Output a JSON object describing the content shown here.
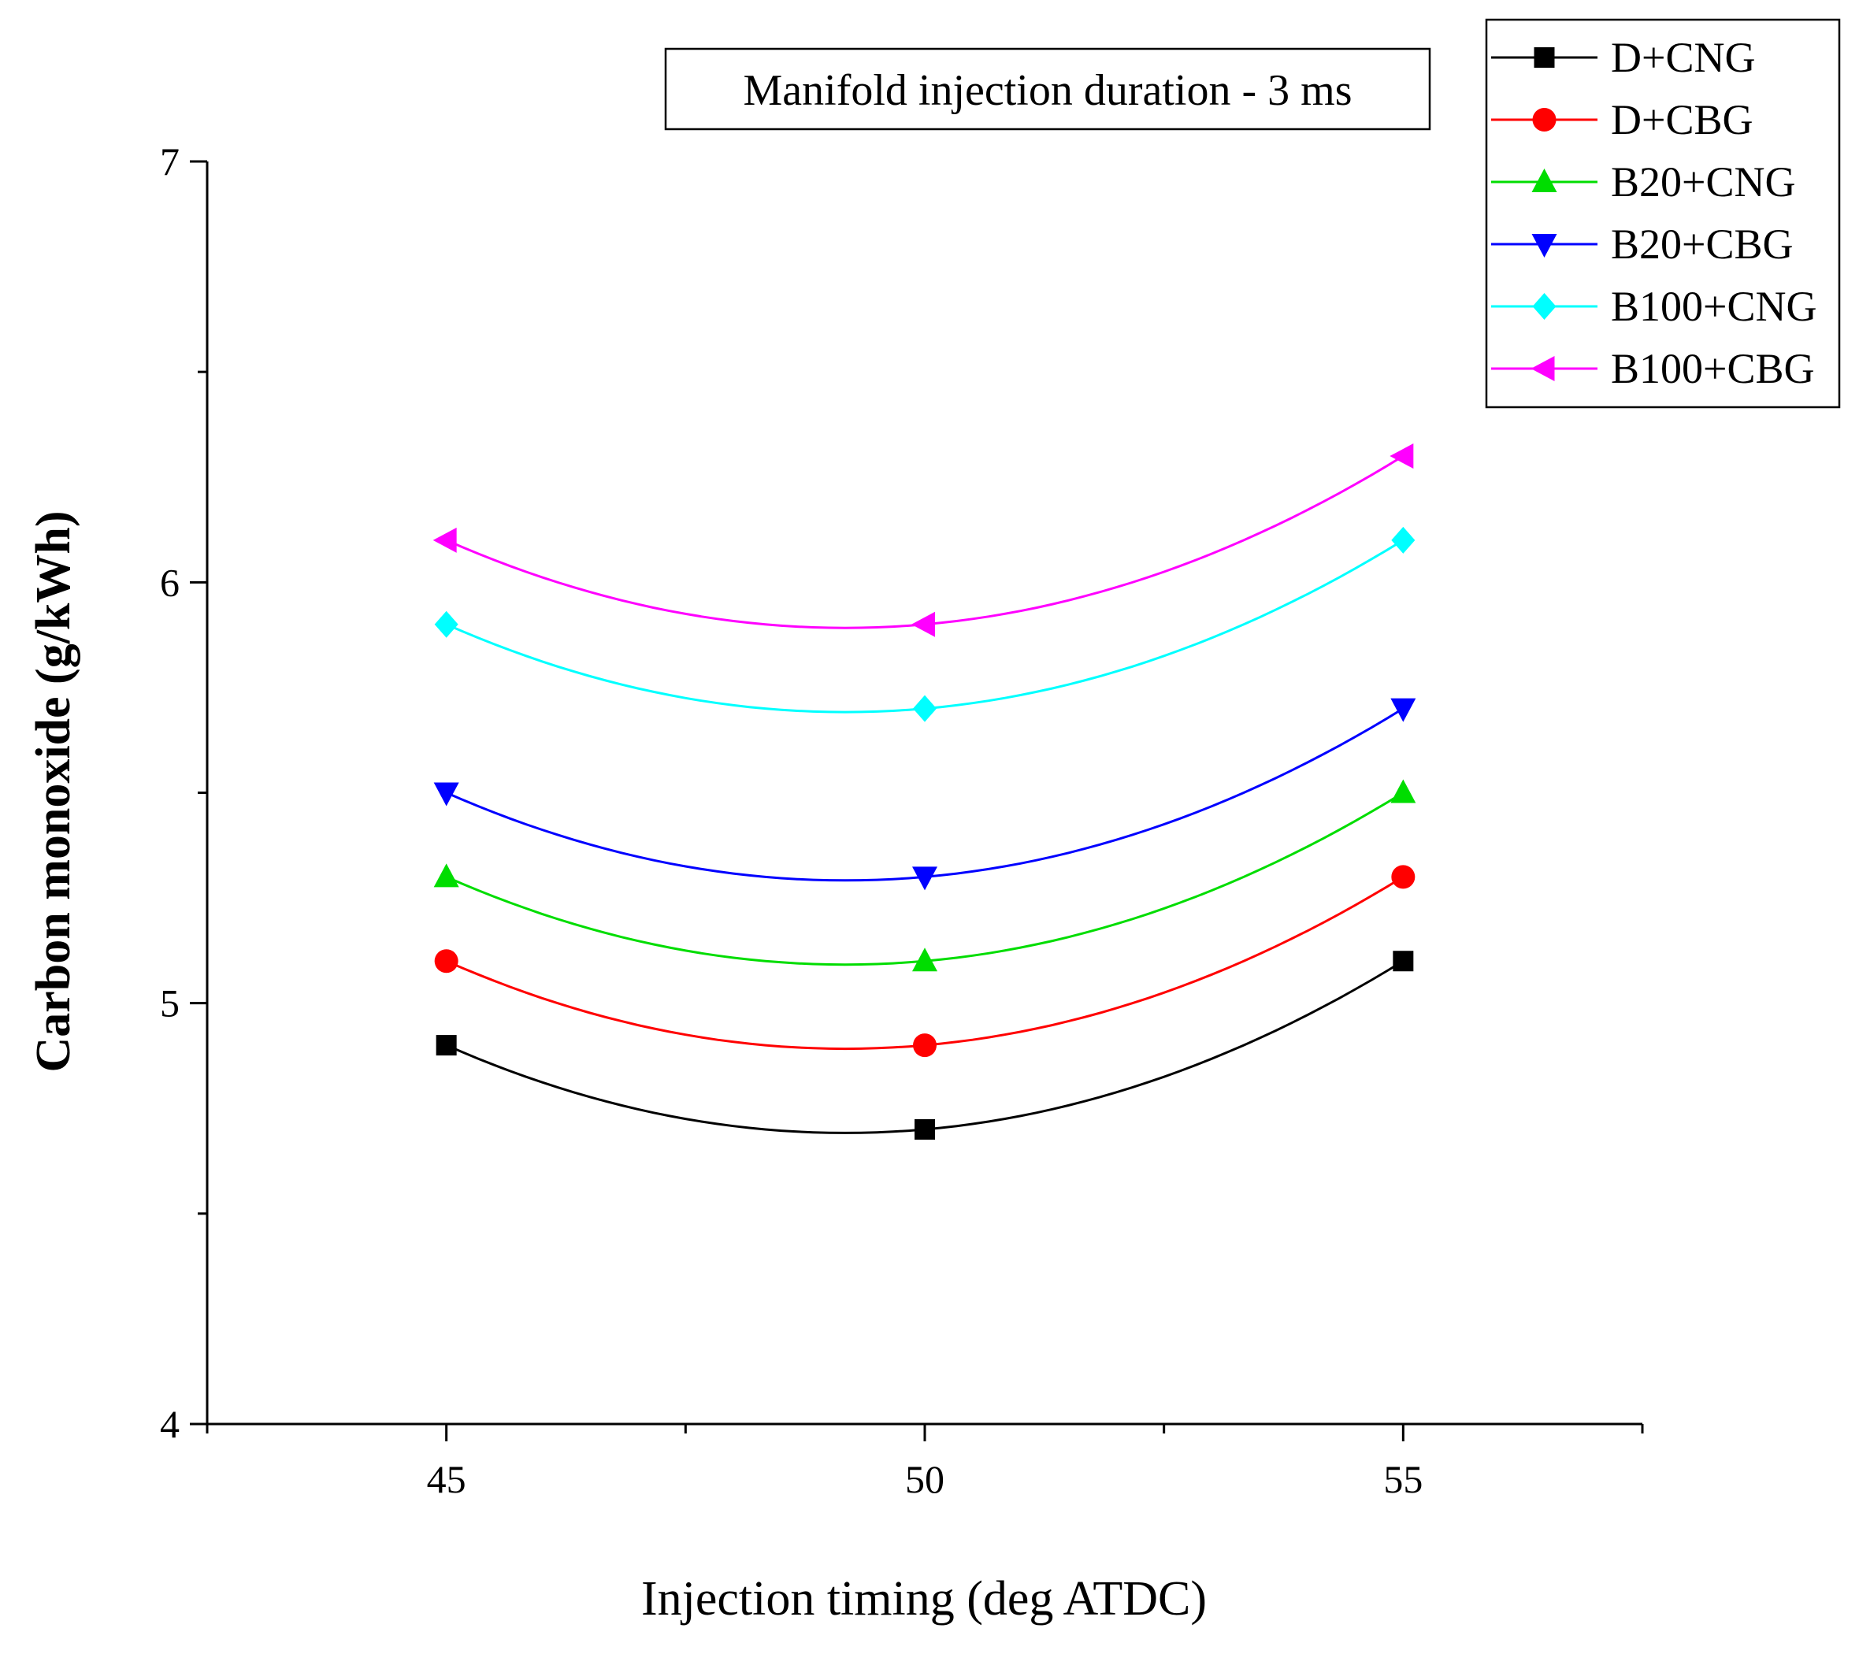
{
  "chart_data": {
    "type": "line",
    "title": "",
    "annotation": "Manifold injection duration - 3 ms",
    "xlabel": "Injection timing (deg ATDC)",
    "ylabel": "Carbon monoxide (g/kWh)",
    "x": [
      45,
      50,
      55
    ],
    "xlim": [
      42.5,
      57.5
    ],
    "ylim": [
      4,
      7
    ],
    "xticks": [
      45,
      50,
      55
    ],
    "yticks": [
      4,
      5,
      6,
      7
    ],
    "legend_position": "top-right",
    "series": [
      {
        "name": "D+CNG",
        "values": [
          4.9,
          4.7,
          5.1
        ],
        "color": "#000000",
        "marker": "square"
      },
      {
        "name": "D+CBG",
        "values": [
          5.1,
          4.9,
          5.3
        ],
        "color": "#ff0000",
        "marker": "circle"
      },
      {
        "name": "B20+CNG",
        "values": [
          5.3,
          5.1,
          5.5
        ],
        "color": "#00dd00",
        "marker": "triangle-up"
      },
      {
        "name": "B20+CBG",
        "values": [
          5.5,
          5.3,
          5.7
        ],
        "color": "#0000ff",
        "marker": "triangle-down"
      },
      {
        "name": "B100+CNG",
        "values": [
          5.9,
          5.7,
          6.1
        ],
        "color": "#00ffff",
        "marker": "diamond"
      },
      {
        "name": "B100+CBG",
        "values": [
          6.1,
          5.9,
          6.3
        ],
        "color": "#ff00ff",
        "marker": "triangle-left"
      }
    ]
  }
}
